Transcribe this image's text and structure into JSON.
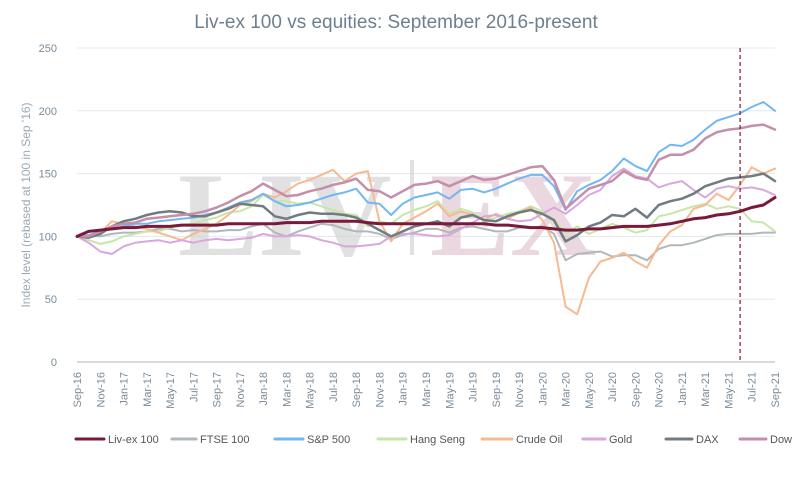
{
  "chart_data": {
    "type": "line",
    "title": "Liv-ex 100 vs equities: September 2016-present",
    "ylabel": "Index level (rebased at 100 in Sep '16)",
    "xlabel": "",
    "ylim": [
      0,
      250
    ],
    "yticks": [
      0,
      50,
      100,
      150,
      200,
      250
    ],
    "grid": true,
    "legend_position": "bottom",
    "watermark": "LIV-EX",
    "annotation": {
      "type": "vertical-dashed-line",
      "x": "Jun-21",
      "color": "#7a1a3a"
    },
    "x": [
      "Sep-16",
      "Oct-16",
      "Nov-16",
      "Dec-16",
      "Jan-17",
      "Feb-17",
      "Mar-17",
      "Apr-17",
      "May-17",
      "Jun-17",
      "Jul-17",
      "Aug-17",
      "Sep-17",
      "Oct-17",
      "Nov-17",
      "Dec-17",
      "Jan-18",
      "Feb-18",
      "Mar-18",
      "Apr-18",
      "May-18",
      "Jun-18",
      "Jul-18",
      "Aug-18",
      "Sep-18",
      "Oct-18",
      "Nov-18",
      "Dec-18",
      "Jan-19",
      "Feb-19",
      "Mar-19",
      "Apr-19",
      "May-19",
      "Jun-19",
      "Jul-19",
      "Aug-19",
      "Sep-19",
      "Oct-19",
      "Nov-19",
      "Dec-19",
      "Jan-20",
      "Feb-20",
      "Mar-20",
      "Apr-20",
      "May-20",
      "Jun-20",
      "Jul-20",
      "Aug-20",
      "Sep-20",
      "Oct-20",
      "Nov-20",
      "Dec-20",
      "Jan-21",
      "Feb-21",
      "Mar-21",
      "Apr-21",
      "May-21",
      "Jun-21",
      "Jul-21",
      "Aug-21",
      "Sep-21"
    ],
    "x_tick_labels": [
      "Sep-16",
      "Nov-16",
      "Jan-17",
      "Mar-17",
      "May-17",
      "Jul-17",
      "Sep-17",
      "Nov-17",
      "Jan-18",
      "Mar-18",
      "May-18",
      "Jul-18",
      "Sep-18",
      "Nov-18",
      "Jan-19",
      "Mar-19",
      "May-19",
      "Jul-19",
      "Sep-19",
      "Nov-19",
      "Jan-20",
      "Mar-20",
      "May-20",
      "Jul-20",
      "Sep-20",
      "Nov-20",
      "Jan-21",
      "Mar-21",
      "May-21",
      "Jul-21",
      "Sep-21"
    ],
    "series": [
      {
        "name": "Liv-ex 100",
        "color": "#7a1a3a",
        "width": 3,
        "values": [
          100,
          104,
          105,
          106,
          107,
          107,
          108,
          108,
          108,
          109,
          109,
          109,
          109,
          110,
          110,
          110,
          110,
          110,
          111,
          111,
          111,
          112,
          112,
          112,
          112,
          111,
          110,
          110,
          110,
          110,
          110,
          110,
          110,
          110,
          110,
          110,
          109,
          109,
          108,
          107,
          107,
          106,
          105,
          105,
          106,
          106,
          107,
          108,
          108,
          108,
          109,
          110,
          112,
          114,
          115,
          117,
          118,
          120,
          123,
          125,
          131
        ]
      },
      {
        "name": "FTSE 100",
        "color": "#b0b8bc",
        "width": 2,
        "values": [
          100,
          101,
          100,
          102,
          103,
          103,
          104,
          106,
          106,
          104,
          105,
          104,
          104,
          105,
          105,
          108,
          110,
          103,
          100,
          104,
          107,
          110,
          109,
          106,
          104,
          104,
          102,
          98,
          101,
          103,
          106,
          106,
          103,
          107,
          108,
          106,
          104,
          104,
          107,
          107,
          108,
          102,
          81,
          86,
          87,
          88,
          84,
          85,
          85,
          81,
          90,
          93,
          93,
          95,
          98,
          101,
          102,
          102,
          102,
          103,
          103
        ]
      },
      {
        "name": "S&P 500",
        "color": "#72b7f2",
        "width": 2,
        "values": [
          100,
          101,
          104,
          106,
          108,
          110,
          110,
          112,
          113,
          114,
          115,
          117,
          119,
          123,
          127,
          129,
          134,
          128,
          124,
          125,
          127,
          130,
          133,
          135,
          138,
          127,
          126,
          117,
          126,
          131,
          133,
          135,
          130,
          137,
          138,
          135,
          138,
          142,
          146,
          149,
          149,
          140,
          121,
          136,
          141,
          145,
          152,
          162,
          156,
          152,
          167,
          173,
          172,
          177,
          185,
          192,
          195,
          198,
          203,
          207,
          200
        ]
      },
      {
        "name": "Hang Seng",
        "color": "#c8e6a8",
        "width": 2,
        "values": [
          100,
          97,
          94,
          96,
          100,
          102,
          104,
          104,
          107,
          109,
          110,
          113,
          115,
          119,
          120,
          124,
          133,
          128,
          128,
          126,
          127,
          124,
          121,
          118,
          117,
          108,
          112,
          110,
          117,
          121,
          124,
          128,
          118,
          122,
          119,
          112,
          115,
          118,
          120,
          124,
          120,
          113,
          102,
          108,
          102,
          106,
          110,
          107,
          103,
          105,
          116,
          118,
          121,
          124,
          126,
          122,
          124,
          122,
          112,
          111,
          104
        ]
      },
      {
        "name": "Crude Oil",
        "color": "#f7b990",
        "width": 2,
        "values": [
          100,
          101,
          103,
          112,
          110,
          108,
          106,
          103,
          100,
          97,
          102,
          106,
          110,
          117,
          125,
          128,
          134,
          131,
          136,
          142,
          145,
          149,
          153,
          144,
          150,
          152,
          112,
          96,
          110,
          115,
          120,
          126,
          116,
          120,
          117,
          113,
          118,
          114,
          119,
          123,
          113,
          95,
          44,
          38,
          67,
          80,
          83,
          87,
          80,
          75,
          93,
          104,
          109,
          122,
          125,
          134,
          129,
          141,
          155,
          150,
          154
        ]
      },
      {
        "name": "Gold",
        "color": "#d8a7dd",
        "width": 2,
        "values": [
          100,
          95,
          88,
          86,
          92,
          95,
          96,
          97,
          95,
          97,
          95,
          97,
          98,
          97,
          98,
          99,
          102,
          100,
          100,
          101,
          100,
          97,
          95,
          92,
          92,
          93,
          94,
          100,
          102,
          102,
          101,
          100,
          101,
          106,
          111,
          116,
          117,
          114,
          112,
          113,
          118,
          123,
          118,
          125,
          133,
          137,
          148,
          154,
          148,
          146,
          139,
          142,
          144,
          137,
          131,
          138,
          140,
          138,
          139,
          137,
          133
        ]
      },
      {
        "name": "DAX",
        "color": "#707c80",
        "width": 2.5,
        "values": [
          100,
          99,
          102,
          108,
          112,
          114,
          117,
          119,
          120,
          119,
          116,
          116,
          119,
          122,
          126,
          125,
          124,
          116,
          114,
          117,
          119,
          118,
          118,
          117,
          115,
          110,
          105,
          100,
          104,
          108,
          110,
          112,
          108,
          115,
          117,
          113,
          112,
          116,
          119,
          121,
          118,
          113,
          96,
          101,
          108,
          111,
          117,
          116,
          122,
          115,
          125,
          128,
          130,
          134,
          140,
          143,
          146,
          147,
          148,
          150,
          144
        ]
      },
      {
        "name": "Dow Jones",
        "color": "#c58eaa",
        "width": 2.5,
        "values": [
          100,
          100,
          104,
          108,
          110,
          111,
          114,
          115,
          116,
          117,
          118,
          120,
          123,
          127,
          132,
          136,
          142,
          137,
          132,
          133,
          136,
          138,
          141,
          143,
          146,
          137,
          136,
          131,
          136,
          141,
          142,
          144,
          140,
          144,
          148,
          145,
          146,
          149,
          152,
          155,
          156,
          145,
          122,
          130,
          138,
          141,
          144,
          152,
          147,
          145,
          161,
          165,
          165,
          169,
          178,
          183,
          185,
          186,
          188,
          189,
          185
        ]
      }
    ]
  }
}
